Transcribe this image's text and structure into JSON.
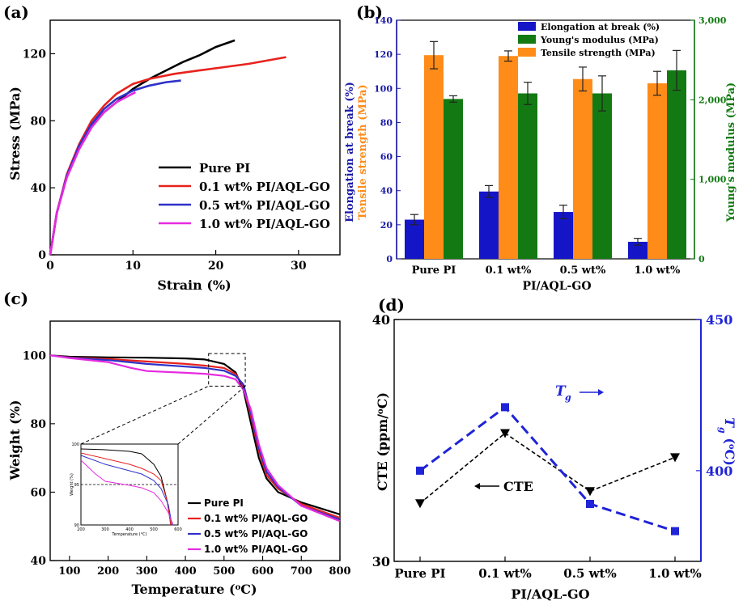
{
  "chart_data": [
    {
      "panel": "(a)",
      "type": "line",
      "title": "",
      "xlabel": "Strain (%)",
      "ylabel": "Stress (MPa)",
      "xlim": [
        0,
        35
      ],
      "ylim": [
        0,
        140
      ],
      "xticks": [
        0,
        10,
        20,
        30
      ],
      "yticks": [
        0,
        40,
        80,
        120
      ],
      "xtick_labels": [
        "0",
        "10",
        "20",
        "30"
      ],
      "ytick_labels": [
        "0",
        "40",
        "80",
        "120"
      ],
      "legend_position": "bottom-right",
      "series": [
        {
          "name": "Pure PI",
          "color": "#000000",
          "x": [
            0,
            0.8,
            2,
            3.5,
            5,
            6.5,
            8,
            10,
            12,
            14,
            16,
            18,
            20,
            22.3
          ],
          "y": [
            0,
            25,
            47,
            65,
            77,
            85,
            91,
            99,
            105,
            110,
            115,
            119,
            124,
            128
          ]
        },
        {
          "name": "0.1 wt% PI/AQL-GO",
          "color": "#e8221e",
          "x": [
            0,
            0.8,
            2,
            3.5,
            5,
            6.5,
            8,
            10,
            12,
            15,
            18,
            21,
            24,
            28.5
          ],
          "y": [
            0,
            25,
            48,
            66,
            80,
            89,
            96,
            102,
            105,
            108,
            110,
            112,
            114,
            118
          ]
        },
        {
          "name": "0.5 wt% PI/AQL-GO",
          "color": "#2e31c8",
          "x": [
            0,
            0.8,
            2,
            3.5,
            5,
            6.5,
            8,
            10,
            12,
            14,
            15.8
          ],
          "y": [
            0,
            25,
            47,
            65,
            78,
            87,
            93,
            98,
            101,
            103,
            104
          ]
        },
        {
          "name": "1.0 wt% PI/AQL-GO",
          "color": "#e62ae0",
          "x": [
            0,
            0.8,
            2,
            3.5,
            5,
            6.5,
            8,
            9.5,
            10.3
          ],
          "y": [
            0,
            25,
            46,
            63,
            76,
            85,
            91,
            95,
            97
          ]
        }
      ]
    },
    {
      "panel": "(b)",
      "type": "bar",
      "xlabel": "PI/AQL-GO",
      "ylabel_left": "Elongation at break (%)",
      "ylabel_left2": "Tensile strength (MPa)",
      "ylabel_right": "Young's modulus (MPa)",
      "ylim_left": [
        0,
        140
      ],
      "ylim_right": [
        0,
        3000
      ],
      "yticks_left": [
        0,
        20,
        40,
        60,
        80,
        100,
        120,
        140
      ],
      "yticks_right": [
        0,
        1000,
        2000,
        3000
      ],
      "ytick_labels_left": [
        "0",
        "20",
        "40",
        "60",
        "80",
        "100",
        "120",
        "140"
      ],
      "ytick_labels_right": [
        "0",
        "1,000",
        "2,000",
        "3,000"
      ],
      "categories": [
        "Pure PI",
        "0.1 wt%",
        "0.5 wt%",
        "1.0 wt%"
      ],
      "legend_position": "top-right",
      "series": [
        {
          "name": "Elongation at break (%)",
          "color": "#1515c8",
          "axis": "left",
          "values": [
            23,
            39.5,
            27.5,
            10
          ],
          "errors": [
            3,
            3.5,
            4,
            2
          ]
        },
        {
          "name": "Tensile strength (MPa)",
          "color": "#ff8c19",
          "axis": "left",
          "values": [
            119.5,
            119,
            105.5,
            103
          ],
          "errors": [
            8,
            3,
            7,
            7
          ]
        },
        {
          "name": "Young's modulus (MPa)",
          "color": "#137a13",
          "axis": "right",
          "values": [
            2010,
            2080,
            2080,
            2370
          ],
          "errors": [
            40,
            140,
            220,
            250
          ]
        }
      ]
    },
    {
      "panel": "(c)",
      "type": "line",
      "xlabel": "Temperature (°C)",
      "ylabel": "Weight (%)",
      "xlim": [
        50,
        800
      ],
      "ylim": [
        40,
        110
      ],
      "xticks": [
        100,
        200,
        300,
        400,
        500,
        600,
        700,
        800
      ],
      "yticks": [
        40,
        60,
        80,
        100
      ],
      "xtick_labels": [
        "100",
        "200",
        "300",
        "400",
        "500",
        "600",
        "700",
        "800"
      ],
      "ytick_labels": [
        "40",
        "60",
        "80",
        "100"
      ],
      "legend_position": "bottom-right",
      "series": [
        {
          "name": "Pure PI",
          "color": "#000000",
          "x": [
            50,
            100,
            200,
            300,
            400,
            450,
            500,
            530,
            550,
            570,
            590,
            610,
            640,
            700,
            800
          ],
          "y": [
            100,
            99.6,
            99.4,
            99.3,
            99.1,
            98.8,
            97.5,
            95,
            90,
            80,
            70,
            64,
            60,
            57,
            53.5
          ]
        },
        {
          "name": "0.1 wt% PI/AQL-GO",
          "color": "#e8221e",
          "x": [
            50,
            100,
            200,
            300,
            400,
            450,
            500,
            530,
            550,
            570,
            590,
            610,
            640,
            700,
            800
          ],
          "y": [
            100,
            99.4,
            98.9,
            98.2,
            97.5,
            97,
            96.3,
            94.5,
            91,
            82,
            72,
            65,
            61,
            56.5,
            52.5
          ]
        },
        {
          "name": "0.5 wt% PI/AQL-GO",
          "color": "#2e31c8",
          "x": [
            50,
            100,
            200,
            300,
            400,
            450,
            500,
            530,
            550,
            570,
            590,
            610,
            640,
            700,
            800
          ],
          "y": [
            100,
            99.3,
            98.6,
            97.5,
            96.7,
            96.3,
            95.5,
            94,
            91.5,
            83,
            73,
            66,
            61.5,
            56,
            52
          ]
        },
        {
          "name": "1.0 wt% PI/AQL-GO",
          "color": "#e62ae0",
          "x": [
            50,
            100,
            200,
            260,
            300,
            400,
            450,
            500,
            530,
            550,
            570,
            590,
            610,
            640,
            700,
            800
          ],
          "y": [
            100,
            99.2,
            98,
            96.3,
            95.4,
            94.9,
            94.6,
            94,
            93,
            90,
            84,
            74,
            67,
            62,
            56,
            51.5
          ]
        }
      ],
      "inset": {
        "xlim": [
          200,
          600
        ],
        "ylim": [
          90,
          100
        ],
        "xticks": [
          200,
          300,
          400,
          500,
          600
        ],
        "yticks": [
          90,
          95,
          100
        ],
        "xtick_labels": [
          "200",
          "300",
          "400",
          "500",
          "600"
        ],
        "ytick_labels": [
          "90",
          "95",
          "100"
        ],
        "xlabel": "Temperature (°C)",
        "ylabel": "Weight (%)",
        "dashed_y": 95,
        "series": [
          {
            "color": "#000000",
            "x": [
              200,
              300,
              400,
              450,
              500,
              530,
              555,
              570
            ],
            "y": [
              99.4,
              99.3,
              99.1,
              98.8,
              97.5,
              96,
              93,
              90
            ]
          },
          {
            "color": "#e8221e",
            "x": [
              200,
              300,
              400,
              450,
              500,
              530,
              555,
              570
            ],
            "y": [
              98.9,
              98.2,
              97.5,
              97,
              96.3,
              95.5,
              93,
              90
            ]
          },
          {
            "color": "#2e31c8",
            "x": [
              200,
              300,
              400,
              450,
              500,
              530,
              560,
              575
            ],
            "y": [
              98.6,
              97.5,
              96.7,
              96.3,
              95.5,
              94.5,
              92.5,
              90
            ]
          },
          {
            "color": "#e62ae0",
            "x": [
              200,
              260,
              300,
              400,
              450,
              500,
              530,
              560,
              580
            ],
            "y": [
              98,
              96.3,
              95.4,
              94.9,
              94.6,
              94,
              93,
              91.5,
              90
            ]
          }
        ]
      }
    },
    {
      "panel": "(d)",
      "type": "line",
      "xlabel": "PI/AQL-GO",
      "ylabel_left": "CTE (ppm/°C)",
      "ylabel_right": "Tg (°C)",
      "ylim_left": [
        30,
        40
      ],
      "ylim_right": [
        370,
        450
      ],
      "yticks_left": [
        30,
        40
      ],
      "yticks_right": [
        400,
        450
      ],
      "ytick_labels_left": [
        "30",
        "40"
      ],
      "ytick_labels_right": [
        "400",
        "450"
      ],
      "categories": [
        "Pure PI",
        "0.1 wt%",
        "0.5 wt%",
        "1.0 wt%"
      ],
      "series": [
        {
          "name": "CTE",
          "color": "#000000",
          "axis": "left",
          "marker": "triangle-down",
          "values": [
            32.4,
            35.3,
            32.9,
            34.3
          ]
        },
        {
          "name": "Tg",
          "color": "#1f24d6",
          "axis": "right",
          "marker": "square",
          "values": [
            400,
            421,
            389,
            380
          ]
        }
      ],
      "annotations": {
        "cte": "CTE",
        "tg": "T",
        "tg_sub": "g"
      }
    }
  ],
  "panel_labels": [
    "(a)",
    "(b)",
    "(c)",
    "(d)"
  ]
}
